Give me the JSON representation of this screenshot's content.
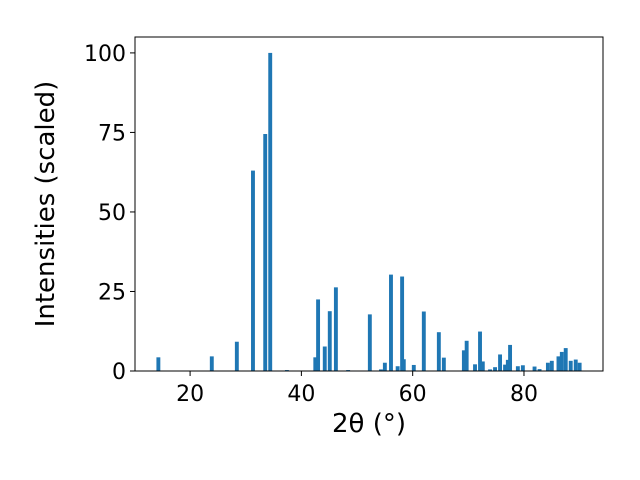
{
  "chart_data": {
    "type": "bar",
    "xlabel": "2θ (°)",
    "ylabel": "Intensities (scaled)",
    "color": "#1f77b4",
    "x": [
      14.3,
      23.9,
      28.4,
      31.3,
      33.5,
      34.4,
      37.4,
      42.5,
      43.0,
      44.2,
      45.1,
      46.2,
      48.4,
      52.3,
      54.3,
      55.0,
      56.1,
      57.3,
      58.1,
      58.4,
      60.2,
      62.0,
      64.7,
      65.6,
      69.2,
      69.7,
      71.2,
      72.1,
      72.6,
      73.9,
      74.8,
      75.7,
      76.6,
      77.1,
      77.5,
      78.9,
      79.8,
      81.9,
      82.8,
      84.3,
      85.0,
      86.2,
      86.8,
      87.5,
      88.4,
      89.3,
      90.0
    ],
    "values": [
      4.3,
      4.6,
      9.2,
      63,
      74.5,
      100,
      0.3,
      4.3,
      22.5,
      7.7,
      18.8,
      26.3,
      0.3,
      17.8,
      0.5,
      2.6,
      30.3,
      1.5,
      29.7,
      3.7,
      1.9,
      18.7,
      12.2,
      4.2,
      6.5,
      9.5,
      2.1,
      12.4,
      3,
      0.5,
      1.2,
      5.2,
      2,
      3.5,
      8.2,
      1.5,
      1.8,
      1.4,
      0.6,
      2.6,
      3.2,
      4.6,
      6,
      7.2,
      3.2,
      3.6,
      2.6
    ],
    "xlim": [
      10.1,
      94.2
    ],
    "ylim": [
      0,
      105
    ],
    "xticks": [
      20,
      40,
      60,
      80
    ],
    "yticks": [
      0,
      25,
      50,
      75,
      100
    ]
  }
}
